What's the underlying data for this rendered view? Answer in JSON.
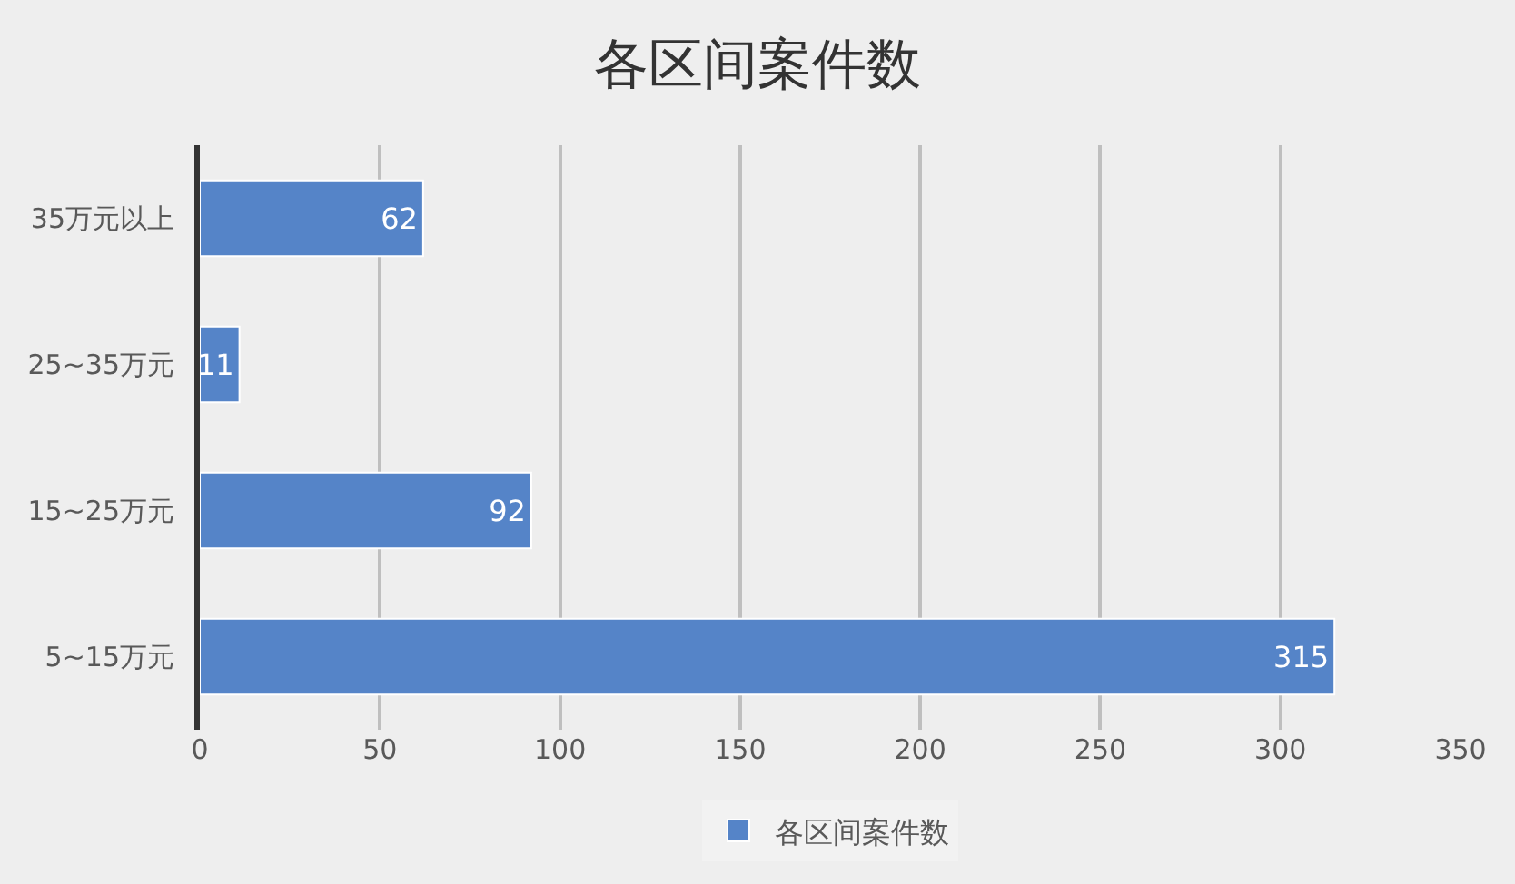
{
  "chart_data": {
    "type": "bar",
    "orientation": "horizontal",
    "title": "各区间案件数",
    "categories": [
      "35万元以上",
      "25~35万元",
      "15~25万元",
      "5~15万元"
    ],
    "series": [
      {
        "name": "各区间案件数",
        "color": "#5584c8",
        "values": [
          62,
          11,
          92,
          315
        ]
      }
    ],
    "xlim": [
      0,
      350
    ],
    "xticks": [
      0,
      50,
      100,
      150,
      200,
      250,
      300,
      350
    ],
    "grid": "x",
    "legend": "bottom",
    "data_labels": true
  }
}
